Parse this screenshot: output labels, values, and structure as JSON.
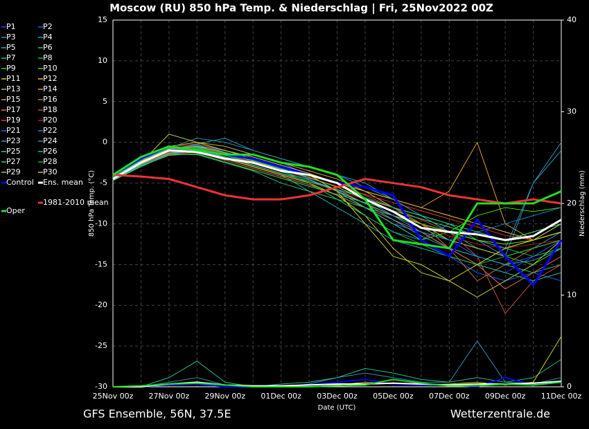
{
  "chart_data": {
    "type": "line",
    "title": "Moscow  (RU)  850 hPa Temp. & Niederschlag | Fri, 25Nov2022 00Z",
    "x_label": "Date (UTC)",
    "y_label": "850 hPa Temp. (°C)",
    "y2_label": "Niederschlag (mm)",
    "footer_left": "GFS Ensemble, 56N, 37.5E",
    "footer_right": "Wetterzentrale.de",
    "categories": [
      "25Nov 00z",
      null,
      "27Nov 00z",
      null,
      "29Nov 00z",
      null,
      "01Dec 00z",
      null,
      "03Dec 00z",
      null,
      "05Dec 00z",
      null,
      "07Dec 00z",
      null,
      "09Dec 00z",
      null,
      "11Dec 00z"
    ],
    "ylim": [
      -30,
      15
    ],
    "yticks": [
      -30,
      -25,
      -20,
      -15,
      -10,
      -5,
      0,
      5,
      10,
      15
    ],
    "y2lim": [
      0,
      40
    ],
    "y2ticks": [
      0,
      10,
      20,
      30,
      40
    ],
    "grid": true,
    "series": [
      {
        "name": "P1",
        "color": "#3333ff",
        "values": [
          -4.5,
          -2.5,
          -1,
          -0.5,
          -1,
          -2,
          -3,
          -4,
          -5,
          -7,
          -9,
          -11,
          -13,
          -15,
          -16,
          -14,
          -12
        ]
      },
      {
        "name": "P2",
        "color": "#1e5aff",
        "values": [
          -4.3,
          -2,
          -0.5,
          0,
          -0.5,
          -1.5,
          -2.5,
          -4,
          -6,
          -8,
          -10,
          -12,
          -14,
          -16,
          -17,
          -16,
          -17
        ]
      },
      {
        "name": "P3",
        "color": "#3a8fd0",
        "values": [
          -4.6,
          -2.8,
          -1.5,
          -1,
          -1.8,
          -3,
          -4,
          -5,
          -7,
          -9,
          -11,
          -12,
          -10,
          -12,
          -14,
          -13,
          -11
        ]
      },
      {
        "name": "P4",
        "color": "#20a0c0",
        "values": [
          -4.4,
          -2.2,
          -1,
          -0.2,
          0.5,
          -1,
          -2,
          -3,
          -4,
          -5,
          -7,
          -9,
          -11,
          -13,
          -14,
          -5,
          -1
        ]
      },
      {
        "name": "P5",
        "color": "#20b0b0",
        "values": [
          -4.5,
          -2.5,
          -1.2,
          -1,
          -2,
          -3,
          -4,
          -6,
          -8,
          -10,
          -12,
          -13,
          -14,
          -15,
          -13,
          -12,
          -10
        ]
      },
      {
        "name": "P6",
        "color": "#20c080",
        "values": [
          -4.2,
          -2,
          -0.8,
          -0.5,
          -1.5,
          -2.5,
          -3.5,
          -5,
          -6.5,
          -8,
          -9,
          -10,
          -11,
          -12,
          -13,
          -12,
          -11
        ]
      },
      {
        "name": "P7",
        "color": "#30c070",
        "values": [
          -4.7,
          -3,
          -1.5,
          -1.5,
          -2.5,
          -3.5,
          -5,
          -6,
          -7,
          -8,
          -10,
          -11,
          -13,
          -14,
          -15,
          -16,
          -15
        ]
      },
      {
        "name": "P8",
        "color": "#20c040",
        "values": [
          -4.4,
          -2.4,
          -1,
          -0.8,
          -1.5,
          -2,
          -3,
          -4,
          -5,
          -6,
          -8,
          -9,
          -10,
          -12,
          -13,
          -14,
          -13
        ]
      },
      {
        "name": "P9",
        "color": "#30d030",
        "values": [
          -4.5,
          -2.6,
          -1.2,
          -0.6,
          -1.2,
          -2.2,
          -3.2,
          -4.5,
          -6,
          -7.5,
          -9,
          -10.5,
          -12,
          -13,
          -14,
          -15,
          -13
        ]
      },
      {
        "name": "P10",
        "color": "#40e000",
        "values": [
          -4.3,
          -2.2,
          -0.7,
          -0.9,
          -1.8,
          -2.8,
          -3.8,
          -4.8,
          -6,
          -8,
          -10,
          -12,
          -11,
          -9,
          -8,
          -8.5,
          -8
        ]
      },
      {
        "name": "P11",
        "color": "#c0d030",
        "values": [
          -4.6,
          -2.7,
          -1.3,
          -1.1,
          -2,
          -3,
          -4,
          -5,
          -6.5,
          -9,
          -13,
          -16,
          -17,
          -19,
          -17,
          -15,
          -12
        ]
      },
      {
        "name": "P12",
        "color": "#e0c040",
        "values": [
          -4.5,
          -2.5,
          -1,
          -0.5,
          -1,
          -1.8,
          -2.8,
          -3.8,
          -5,
          -6,
          -7,
          -8,
          -9,
          -10,
          -11,
          -12,
          -10
        ]
      },
      {
        "name": "P13",
        "color": "#d0b030",
        "values": [
          -4.4,
          -2.3,
          -0.5,
          0,
          -0.5,
          -1.5,
          -2.5,
          -3.5,
          -4.5,
          -6,
          -8,
          -10,
          -12,
          -13,
          -14,
          -13,
          -12
        ]
      },
      {
        "name": "P14",
        "color": "#e0a030",
        "values": [
          -4.5,
          -2.5,
          -1,
          -0.4,
          -1,
          -2,
          -3,
          -4,
          -5,
          -6,
          -7,
          -8,
          -6,
          0,
          -10,
          -12,
          -11
        ]
      },
      {
        "name": "P15",
        "color": "#e09050",
        "values": [
          -4.6,
          -2.6,
          -1.1,
          -0.7,
          -1.6,
          -2.6,
          -3.6,
          -4.6,
          -6,
          -7.5,
          -9,
          -10,
          -11,
          -12,
          -13,
          -12,
          -11
        ]
      },
      {
        "name": "P16",
        "color": "#c07030",
        "values": [
          -4.4,
          -2.2,
          -0.8,
          -0.3,
          -1.3,
          -2.3,
          -3.3,
          -4.3,
          -5.5,
          -7,
          -8,
          -10,
          -13,
          -17,
          -15,
          -13,
          -12
        ]
      },
      {
        "name": "P17",
        "color": "#e07040",
        "values": [
          -4.5,
          -2.5,
          -1.5,
          -1.2,
          -2.2,
          -3.2,
          -4.2,
          -5.2,
          -6.5,
          -8,
          -9.5,
          -11,
          -13,
          -15,
          -18,
          -16,
          -14
        ]
      },
      {
        "name": "P18",
        "color": "#c05030",
        "values": [
          -4.3,
          -2,
          -0.6,
          -0.2,
          -1,
          -2,
          -3,
          -4,
          -5,
          -6.5,
          -8,
          -9.5,
          -11,
          -14,
          -21,
          -17,
          -15
        ]
      },
      {
        "name": "P19",
        "color": "#e03030",
        "values": [
          -4.5,
          -2.4,
          -1,
          -0.6,
          -1.4,
          -2.4,
          -3.4,
          -4.4,
          -5.4,
          -6.4,
          -7.4,
          -8.4,
          -9.4,
          -10.4,
          -11.4,
          -12,
          -11
        ]
      },
      {
        "name": "P20",
        "color": "#b02020",
        "values": [
          -4.6,
          -2.6,
          -1.2,
          -0.9,
          -1.9,
          -2.9,
          -3.9,
          -4.9,
          -5.9,
          -7,
          -8.5,
          -10,
          -11.5,
          -12.5,
          -13,
          -12.5,
          -12
        ]
      },
      {
        "name": "P21",
        "color": "#2060e0",
        "values": [
          -4.4,
          -2.3,
          -0.9,
          -0.4,
          -1,
          -2,
          -3,
          -4.5,
          -6,
          -8,
          -10,
          -11,
          -12,
          -14,
          -15,
          -14,
          -12
        ]
      },
      {
        "name": "P22",
        "color": "#2080d0",
        "values": [
          -4.5,
          -2.5,
          -1,
          -0.3,
          -1.2,
          -2.2,
          -3.2,
          -4,
          -5,
          -7,
          -9,
          -11,
          -12,
          -11,
          -10,
          -9,
          -8
        ]
      },
      {
        "name": "P23",
        "color": "#30a0d0",
        "values": [
          -4.6,
          -2.8,
          -1.4,
          -1,
          -1.8,
          -2.6,
          -3.6,
          -4.6,
          -5.8,
          -7.5,
          -9.5,
          -11.5,
          -13,
          -14,
          -15,
          -14.5,
          -13
        ]
      },
      {
        "name": "P24",
        "color": "#3090b0",
        "values": [
          -4.4,
          -2.2,
          -0.7,
          0.5,
          0,
          -1,
          -2,
          -3,
          -4,
          -5.5,
          -7,
          -9,
          -11,
          -12,
          -13,
          -5,
          0
        ],
        "precip": [
          0,
          0,
          0.5,
          1,
          0.2,
          0,
          0,
          0.3,
          1,
          1.5,
          1,
          0.5,
          0.5,
          5,
          0.5,
          0.3,
          1
        ]
      },
      {
        "name": "P25",
        "color": "#20d0a0",
        "values": [
          -4.5,
          -2.5,
          -1.1,
          -0.8,
          -1.8,
          -2.8,
          -3.8,
          -4.8,
          -5.8,
          -6.8,
          -8,
          -9,
          -10,
          -11,
          -12,
          -11,
          -10
        ]
      },
      {
        "name": "P26",
        "color": "#20c090",
        "values": [
          -4.3,
          -2.1,
          -0.6,
          -0.6,
          -1.6,
          -2.6,
          -3.6,
          -4.6,
          -6,
          -8,
          -10,
          -12,
          -14,
          -15,
          -16,
          -17,
          -16
        ],
        "precip": [
          0,
          0,
          1,
          2.8,
          0.5,
          0,
          0.3,
          0.5,
          1,
          2,
          1.5,
          0.8,
          0.5,
          1,
          0.5,
          1,
          3
        ]
      },
      {
        "name": "P27",
        "color": "#40d060",
        "values": [
          -4.7,
          -2.9,
          -1.6,
          -1.4,
          -2.4,
          -3.4,
          -4.4,
          -5.4,
          -6.4,
          -7.4,
          -8.4,
          -9.4,
          -10.4,
          -11.4,
          -12,
          -11,
          -10
        ]
      },
      {
        "name": "P28",
        "color": "#20b040",
        "values": [
          -4.5,
          -2.5,
          -1,
          -0.7,
          -1.5,
          -2.5,
          -3.5,
          -5,
          -7,
          -9,
          -11,
          -12.5,
          -14,
          -15,
          -14,
          -13,
          -12
        ]
      },
      {
        "name": "P29",
        "color": "#70e020",
        "values": [
          -4.4,
          -2.3,
          -0.8,
          -0.5,
          -1.3,
          -2.3,
          -3.3,
          -4.3,
          -5.5,
          -7,
          -8.5,
          -10,
          -11,
          -12,
          -12.5,
          -12,
          -11
        ]
      },
      {
        "name": "P30",
        "color": "#d0d020",
        "values": [
          -4.5,
          -2.5,
          1,
          0,
          -1,
          -2,
          -3,
          -4,
          -6,
          -10,
          -14,
          -15,
          -17,
          -15,
          -13,
          -12,
          -11
        ],
        "precip": [
          0,
          0,
          0.2,
          0.3,
          0,
          0,
          0,
          0,
          0.2,
          0.5,
          0.3,
          0.2,
          0.3,
          0.5,
          0.2,
          0.5,
          5.5
        ]
      },
      {
        "name": "Control",
        "color": "#0000ff",
        "values": [
          -4,
          -2,
          -0.5,
          -1,
          -1.5,
          -2,
          -3,
          -4,
          -5,
          -5.5,
          -6.5,
          -12,
          -14,
          -9.5,
          -14,
          -17.5,
          -12
        ],
        "precip": [
          0,
          0,
          0.2,
          0.3,
          0,
          0,
          0,
          0.2,
          0.5,
          0.8,
          0.3,
          0.2,
          0.2,
          0,
          1,
          0.2,
          0.5
        ]
      },
      {
        "name": "Ens. mean",
        "color": "#ffffff",
        "values": [
          -4.5,
          -2.5,
          -1,
          -1.2,
          -2,
          -2.5,
          -3.5,
          -4,
          -5,
          -7,
          -8.5,
          -10.5,
          -11,
          -11.3,
          -12,
          -11.5,
          -9.5
        ],
        "precip": [
          0,
          0,
          0.3,
          0.5,
          0.2,
          0.1,
          0.1,
          0.2,
          0.3,
          0.3,
          0.4,
          0.3,
          0.2,
          0.3,
          0.3,
          0.4,
          0.6
        ]
      },
      {
        "name": "1981-2010 mean",
        "color": "#ee3333",
        "values": [
          -4,
          -4.2,
          -4.5,
          -5.5,
          -6.5,
          -7,
          -7,
          -6.5,
          -5.5,
          -4.5,
          -5,
          -5.5,
          -6.5,
          -7,
          -7.5,
          -7,
          -7.5
        ]
      },
      {
        "name": "Oper",
        "color": "#22dd22",
        "values": [
          -4,
          -1.8,
          -0.5,
          -1,
          -1.5,
          -1.5,
          -2.5,
          -3,
          -4,
          -7,
          -12,
          -12.5,
          -13,
          -7.5,
          -7.5,
          -7.5,
          -6
        ],
        "precip": [
          0,
          0.1,
          0.3,
          0.4,
          0.2,
          0,
          0,
          0,
          0.1,
          0.2,
          0.8,
          0.4,
          0.1,
          0.1,
          0.3,
          0.2,
          0.5
        ]
      }
    ]
  }
}
